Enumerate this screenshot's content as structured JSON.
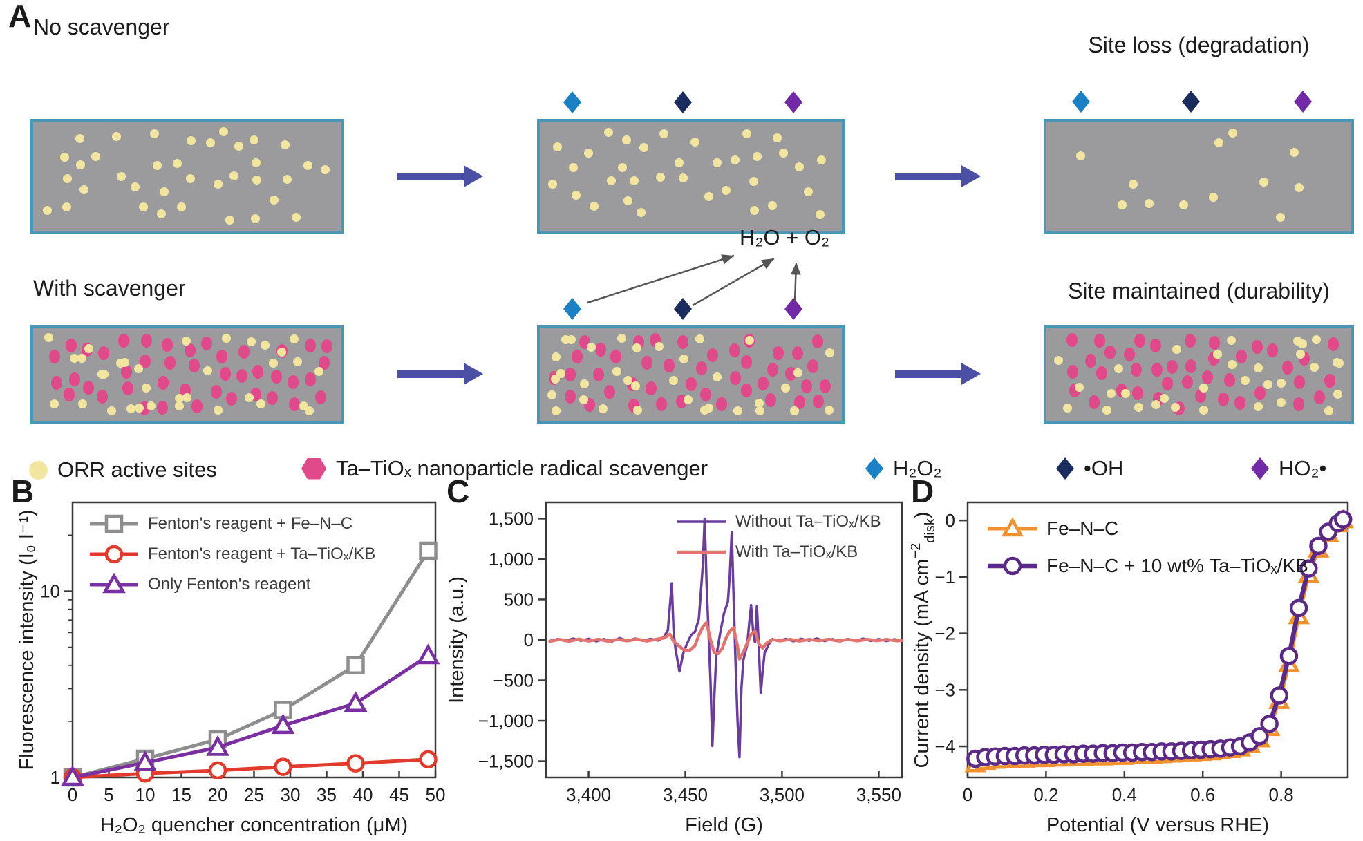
{
  "panel_letters": {
    "a": "A",
    "b": "B",
    "c": "C",
    "d": "D"
  },
  "panel_a": {
    "headings": {
      "row1_left": "No scavenger",
      "row1_right": "Site loss (degradation)",
      "row2_left": "With scavenger",
      "row2_right": "Site maintained (durability)"
    },
    "reaction_label": "H₂O + O₂",
    "colors": {
      "membrane_fill": "#9b9b9d",
      "membrane_border": "#4a97b5",
      "active_site": "#f1e5a0",
      "scavenger": "#e0498a",
      "big_arrow": "#4b50a5",
      "thin_arrow": "#555555",
      "h2o2": "#1b80c4",
      "oh_radical": "#1b2d5e",
      "ho2_radical": "#7229a8"
    },
    "boxes": [
      {
        "id": "r1c1",
        "active_sites": 36,
        "scavengers": 0,
        "seed": 11
      },
      {
        "id": "r1c2",
        "active_sites": 34,
        "scavengers": 0,
        "seed": 27
      },
      {
        "id": "r1c3",
        "active_sites": 12,
        "scavengers": 0,
        "seed": 33
      },
      {
        "id": "r2c1",
        "active_sites": 34,
        "scavengers": 42,
        "seed": 44
      },
      {
        "id": "r2c2",
        "active_sites": 34,
        "scavengers": 42,
        "seed": 58
      },
      {
        "id": "r2c3",
        "active_sites": 32,
        "scavengers": 40,
        "seed": 66
      }
    ],
    "legend": [
      {
        "swatch": "circle",
        "color_key": "active_site",
        "label": "ORR active sites"
      },
      {
        "swatch": "hexagon",
        "color_key": "scavenger",
        "label": "Ta–TiOₓ nanoparticle radical scavenger"
      },
      {
        "swatch": "diamond",
        "color_key": "h2o2",
        "label": "H₂O₂"
      },
      {
        "swatch": "diamond",
        "color_key": "oh_radical",
        "label": "•OH"
      },
      {
        "swatch": "diamond",
        "color_key": "ho2_radical",
        "label": "HO₂•"
      }
    ]
  },
  "chart_data": [
    {
      "id": "chartB",
      "panel": "B",
      "type": "line",
      "xlabel": "H₂O₂ quencher concentration (μM)",
      "ylabel": "Fluorescence intensity (I₀ I⁻¹)",
      "xlim": [
        0,
        50
      ],
      "ylim": [
        1,
        30
      ],
      "yscale": "log",
      "grid": false,
      "legend_position": "top-left",
      "xticks": [
        {
          "v": 0,
          "l": "0"
        },
        {
          "v": 5,
          "l": "5"
        },
        {
          "v": 10,
          "l": "10"
        },
        {
          "v": 15,
          "l": "15"
        },
        {
          "v": 20,
          "l": "20"
        },
        {
          "v": 25,
          "l": "25"
        },
        {
          "v": 30,
          "l": "30"
        },
        {
          "v": 35,
          "l": "35"
        },
        {
          "v": 40,
          "l": "40"
        },
        {
          "v": 45,
          "l": "45"
        },
        {
          "v": 50,
          "l": "50"
        }
      ],
      "yticks": [
        {
          "v": 1,
          "l": "1"
        },
        {
          "v": 10,
          "l": "10"
        }
      ],
      "yminor": [
        2,
        3,
        4,
        5,
        6,
        7,
        8,
        9,
        20
      ],
      "x": [
        0,
        10,
        20,
        29,
        39,
        49
      ],
      "series": [
        {
          "name": "Fenton's reagent + Fe–N–C",
          "color": "#8e8e8e",
          "marker": "square",
          "lw": 5,
          "ms": 11,
          "values": [
            1,
            1.26,
            1.6,
            2.3,
            4.0,
            16.5
          ]
        },
        {
          "name": "Fenton's reagent + Ta–TiOₓ/KB",
          "color": "#e23b2e",
          "marker": "circle",
          "lw": 5,
          "ms": 11,
          "values": [
            1,
            1.05,
            1.09,
            1.14,
            1.19,
            1.25
          ]
        },
        {
          "name": "Only Fenton's reagent",
          "color": "#7a30a0",
          "marker": "triangle",
          "lw": 5,
          "ms": 12,
          "values": [
            1,
            1.2,
            1.45,
            1.9,
            2.5,
            4.5
          ]
        }
      ]
    },
    {
      "id": "chartC",
      "panel": "C",
      "type": "line",
      "xlabel": "Field (G)",
      "ylabel": "Intensity (a.u.)",
      "xlim": [
        3378,
        3562
      ],
      "ylim": [
        -1700,
        1700
      ],
      "grid": false,
      "legend_position": "top-right",
      "xticks": [
        {
          "v": 3400,
          "l": "3,400"
        },
        {
          "v": 3450,
          "l": "3,450"
        },
        {
          "v": 3500,
          "l": "3,500"
        },
        {
          "v": 3550,
          "l": "3,550"
        }
      ],
      "yticks": [
        {
          "v": 1500,
          "l": "1,500"
        },
        {
          "v": 1000,
          "l": "1,000"
        },
        {
          "v": 500,
          "l": "500"
        },
        {
          "v": 0,
          "l": "0"
        },
        {
          "v": -500,
          "l": "−500"
        },
        {
          "v": -1000,
          "l": "−1,000"
        },
        {
          "v": -1500,
          "l": "−1,500"
        }
      ],
      "series": [
        {
          "name": "Without Ta–TiOₓ/KB",
          "color": "#6a3d9a",
          "marker": "none",
          "lw": 3.5,
          "points": [
            [
              3380,
              -12
            ],
            [
              3384,
              10
            ],
            [
              3388,
              -14
            ],
            [
              3392,
              16
            ],
            [
              3396,
              -10
            ],
            [
              3400,
              14
            ],
            [
              3404,
              -16
            ],
            [
              3408,
              10
            ],
            [
              3412,
              -20
            ],
            [
              3416,
              22
            ],
            [
              3420,
              -12
            ],
            [
              3424,
              16
            ],
            [
              3428,
              -10
            ],
            [
              3432,
              12
            ],
            [
              3436,
              -8
            ],
            [
              3439,
              40
            ],
            [
              3441,
              120
            ],
            [
              3443,
              700
            ],
            [
              3444,
              80
            ],
            [
              3445,
              -120
            ],
            [
              3447,
              -390
            ],
            [
              3449,
              -160
            ],
            [
              3451,
              -40
            ],
            [
              3453,
              60
            ],
            [
              3455,
              100
            ],
            [
              3457,
              260
            ],
            [
              3459,
              900
            ],
            [
              3460,
              1500
            ],
            [
              3461,
              700
            ],
            [
              3462,
              100
            ],
            [
              3463,
              -500
            ],
            [
              3464,
              -1310
            ],
            [
              3465,
              -700
            ],
            [
              3466,
              -200
            ],
            [
              3468,
              80
            ],
            [
              3470,
              330
            ],
            [
              3472,
              470
            ],
            [
              3473,
              800
            ],
            [
              3474,
              1330
            ],
            [
              3475,
              500
            ],
            [
              3476,
              -300
            ],
            [
              3477,
              -1000
            ],
            [
              3478,
              -1450
            ],
            [
              3479,
              -600
            ],
            [
              3480,
              -250
            ],
            [
              3482,
              -60
            ],
            [
              3483,
              200
            ],
            [
              3484,
              430
            ],
            [
              3485,
              120
            ],
            [
              3486,
              -30
            ],
            [
              3487,
              420
            ],
            [
              3488,
              -100
            ],
            [
              3489,
              -660
            ],
            [
              3490,
              -380
            ],
            [
              3491,
              -160
            ],
            [
              3493,
              -60
            ],
            [
              3495,
              10
            ],
            [
              3498,
              -14
            ],
            [
              3502,
              12
            ],
            [
              3506,
              -16
            ],
            [
              3510,
              14
            ],
            [
              3514,
              -10
            ],
            [
              3518,
              18
            ],
            [
              3522,
              -14
            ],
            [
              3526,
              10
            ],
            [
              3530,
              -18
            ],
            [
              3534,
              12
            ],
            [
              3538,
              -10
            ],
            [
              3542,
              16
            ],
            [
              3546,
              -12
            ],
            [
              3550,
              10
            ],
            [
              3554,
              -14
            ],
            [
              3558,
              8
            ],
            [
              3562,
              -10
            ]
          ]
        },
        {
          "name": "With Ta–TiOₓ/KB",
          "color": "#e2736e",
          "marker": "none",
          "lw": 4.5,
          "points": [
            [
              3380,
              -18
            ],
            [
              3385,
              6
            ],
            [
              3390,
              -16
            ],
            [
              3395,
              10
            ],
            [
              3400,
              -14
            ],
            [
              3405,
              8
            ],
            [
              3410,
              -16
            ],
            [
              3415,
              6
            ],
            [
              3420,
              -12
            ],
            [
              3425,
              10
            ],
            [
              3430,
              -14
            ],
            [
              3435,
              8
            ],
            [
              3439,
              24
            ],
            [
              3442,
              70
            ],
            [
              3444,
              -20
            ],
            [
              3446,
              -60
            ],
            [
              3449,
              -120
            ],
            [
              3452,
              -135
            ],
            [
              3455,
              -70
            ],
            [
              3457,
              60
            ],
            [
              3459,
              160
            ],
            [
              3461,
              215
            ],
            [
              3463,
              0
            ],
            [
              3465,
              -160
            ],
            [
              3467,
              -170
            ],
            [
              3469,
              -110
            ],
            [
              3471,
              20
            ],
            [
              3473,
              110
            ],
            [
              3475,
              150
            ],
            [
              3477,
              -80
            ],
            [
              3478,
              -235
            ],
            [
              3480,
              -150
            ],
            [
              3482,
              -40
            ],
            [
              3484,
              70
            ],
            [
              3486,
              110
            ],
            [
              3488,
              -50
            ],
            [
              3490,
              -100
            ],
            [
              3492,
              -40
            ],
            [
              3495,
              6
            ],
            [
              3499,
              -12
            ],
            [
              3504,
              8
            ],
            [
              3509,
              -14
            ],
            [
              3514,
              6
            ],
            [
              3519,
              -10
            ],
            [
              3524,
              8
            ],
            [
              3529,
              -12
            ],
            [
              3534,
              6
            ],
            [
              3539,
              -12
            ],
            [
              3544,
              8
            ],
            [
              3549,
              -10
            ],
            [
              3554,
              6
            ],
            [
              3559,
              -10
            ],
            [
              3562,
              -6
            ]
          ]
        }
      ]
    },
    {
      "id": "chartD",
      "panel": "D",
      "type": "line",
      "xlabel": "Potential (V versus RHE)",
      "ylabel_parts": [
        {
          "t": "Current density (mA cm"
        },
        {
          "t": "−2",
          "style": "sup"
        },
        {
          "t": "disk",
          "style": "sub"
        },
        {
          "t": ")"
        }
      ],
      "xlim": [
        0,
        0.97
      ],
      "ylim": [
        -4.55,
        0.32
      ],
      "grid": false,
      "legend_position": "top-left",
      "xticks": [
        {
          "v": 0,
          "l": "0"
        },
        {
          "v": 0.2,
          "l": "0.2"
        },
        {
          "v": 0.4,
          "l": "0.4"
        },
        {
          "v": 0.6,
          "l": "0.6"
        },
        {
          "v": 0.8,
          "l": "0.8"
        }
      ],
      "yticks": [
        {
          "v": 0,
          "l": "0"
        },
        {
          "v": -1,
          "l": "−1"
        },
        {
          "v": -2,
          "l": "−2"
        },
        {
          "v": -3,
          "l": "−3"
        },
        {
          "v": -4,
          "l": "−4"
        }
      ],
      "x": [
        0.02,
        0.045,
        0.07,
        0.095,
        0.12,
        0.145,
        0.17,
        0.195,
        0.22,
        0.245,
        0.27,
        0.295,
        0.32,
        0.345,
        0.37,
        0.395,
        0.42,
        0.445,
        0.47,
        0.495,
        0.52,
        0.545,
        0.57,
        0.595,
        0.62,
        0.645,
        0.67,
        0.695,
        0.72,
        0.745,
        0.77,
        0.795,
        0.82,
        0.845,
        0.87,
        0.895,
        0.92,
        0.945,
        0.958
      ],
      "series": [
        {
          "name": "Fe–N–C",
          "color": "#f29130",
          "marker": "triangle",
          "lw": 5,
          "ms": 11,
          "values": [
            -4.32,
            -4.28,
            -4.26,
            -4.25,
            -4.24,
            -4.24,
            -4.23,
            -4.23,
            -4.22,
            -4.22,
            -4.21,
            -4.21,
            -4.2,
            -4.2,
            -4.19,
            -4.19,
            -4.18,
            -4.17,
            -4.17,
            -4.16,
            -4.15,
            -4.14,
            -4.13,
            -4.12,
            -4.11,
            -4.09,
            -4.07,
            -4.04,
            -3.98,
            -3.88,
            -3.68,
            -3.2,
            -2.55,
            -1.7,
            -0.97,
            -0.52,
            -0.24,
            -0.07,
            0.0
          ]
        },
        {
          "name": "Fe–N–C + 10 wt% Ta–TiOₓ/KB",
          "color": "#5b2a86",
          "marker": "circle",
          "lw": 6.5,
          "ms": 11,
          "values": [
            -4.22,
            -4.19,
            -4.18,
            -4.17,
            -4.17,
            -4.16,
            -4.16,
            -4.15,
            -4.15,
            -4.14,
            -4.14,
            -4.13,
            -4.13,
            -4.12,
            -4.12,
            -4.11,
            -4.11,
            -4.1,
            -4.1,
            -4.09,
            -4.09,
            -4.08,
            -4.07,
            -4.06,
            -4.05,
            -4.04,
            -4.02,
            -4.0,
            -3.93,
            -3.82,
            -3.6,
            -3.1,
            -2.4,
            -1.55,
            -0.85,
            -0.45,
            -0.2,
            -0.05,
            0.02
          ]
        }
      ]
    }
  ]
}
